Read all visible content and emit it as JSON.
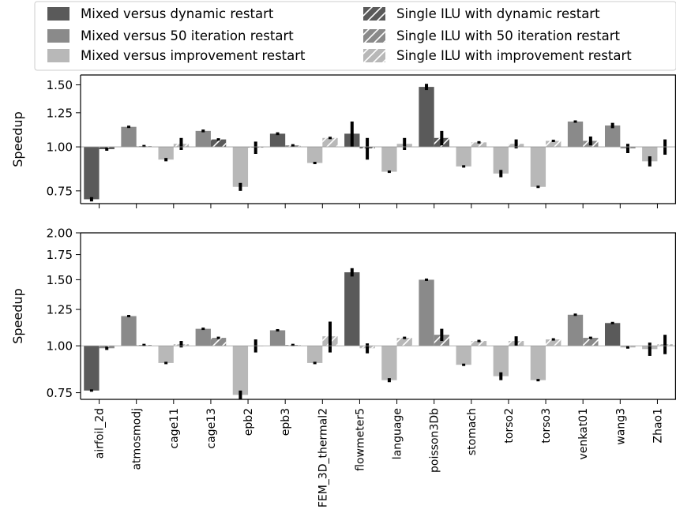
{
  "chart_data": {
    "type": "bar",
    "categories": [
      "airfoil_2d",
      "atmosmodj",
      "cage11",
      "cage13",
      "epb2",
      "epb3",
      "FEM_3D_thermal2",
      "flowmeter5",
      "language",
      "poisson3Db",
      "stomach",
      "torso2",
      "torso3",
      "venkat01",
      "wang3",
      "Zhao1"
    ],
    "baseline": 1.0,
    "legend": {
      "placement": "top",
      "entries": [
        {
          "label": "Mixed versus dynamic restart",
          "color": "#5a5a5a",
          "hatch": false
        },
        {
          "label": "Single ILU with dynamic restart",
          "color": "#5a5a5a",
          "hatch": true
        },
        {
          "label": "Mixed versus 50 iteration restart",
          "color": "#8a8a8a",
          "hatch": false
        },
        {
          "label": "Single ILU with 50 iteration restart",
          "color": "#8a8a8a",
          "hatch": true
        },
        {
          "label": "Mixed versus improvement restart",
          "color": "#b8b8b8",
          "hatch": false
        },
        {
          "label": "Single ILU with improvement restart",
          "color": "#b8b8b8",
          "hatch": true
        }
      ]
    },
    "panels": [
      {
        "ylabel": "Speedup",
        "yscale": "log",
        "ylim": [
          0.69,
          1.6
        ],
        "yticks": [
          "0.75",
          "1.00",
          "1.25",
          "1.50"
        ],
        "ytick_values": [
          0.75,
          1.0,
          1.25,
          1.5
        ],
        "show_xtick_labels": false,
        "mixed_restart_type": [
          "dynamic",
          "50",
          "improvement",
          "50",
          "improvement",
          "dynamic",
          "improvement",
          "dynamic",
          "improvement",
          "dynamic",
          "improvement",
          "improvement",
          "improvement",
          "50",
          "50",
          "improvement"
        ],
        "mixed": [
          0.71,
          1.14,
          0.92,
          1.11,
          0.77,
          1.09,
          0.9,
          1.09,
          0.85,
          1.48,
          0.88,
          0.84,
          0.77,
          1.18,
          1.15,
          0.91
        ],
        "mixed_err": [
          0.01,
          0.0,
          0.01,
          0.01,
          0.02,
          0.01,
          0.0,
          0.09,
          0.0,
          0.03,
          0.0,
          0.02,
          0.0,
          0.0,
          0.02,
          0.03
        ],
        "single_restart_type": [
          "dynamic",
          "50",
          "improvement",
          "dynamic",
          "50",
          "50",
          "improvement",
          "dynamic",
          "improvement",
          "dynamic",
          "improvement",
          "improvement",
          "improvement",
          "50",
          "50",
          "improvement"
        ],
        "single": [
          0.985,
          1.005,
          1.02,
          1.05,
          0.995,
          1.01,
          1.06,
          0.99,
          1.02,
          1.06,
          1.03,
          1.02,
          1.04,
          1.04,
          0.99,
          1.0
        ],
        "single_err": [
          0.01,
          0.0,
          0.04,
          0.0,
          0.04,
          0.0,
          0.0,
          0.07,
          0.04,
          0.05,
          0.0,
          0.03,
          0.0,
          0.03,
          0.03,
          0.05
        ]
      },
      {
        "ylabel": "Speedup",
        "yscale": "log",
        "ylim": [
          0.72,
          2.0
        ],
        "yticks": [
          "0.75",
          "1.00",
          "1.25",
          "1.50",
          "1.75",
          "2.00"
        ],
        "ytick_values": [
          0.75,
          1.0,
          1.25,
          1.5,
          1.75,
          2.0
        ],
        "show_xtick_labels": true,
        "mixed_restart_type": [
          "dynamic",
          "50",
          "improvement",
          "50",
          "improvement",
          "50",
          "improvement",
          "dynamic",
          "improvement",
          "50",
          "improvement",
          "improvement",
          "improvement",
          "50",
          "dynamic",
          "improvement"
        ],
        "mixed": [
          0.76,
          1.2,
          0.9,
          1.11,
          0.74,
          1.1,
          0.9,
          1.57,
          0.81,
          1.5,
          0.89,
          0.83,
          0.81,
          1.21,
          1.15,
          0.98
        ],
        "mixed_err": [
          0.0,
          0.0,
          0.0,
          0.0,
          0.02,
          0.0,
          0.0,
          0.04,
          0.01,
          0.01,
          0.0,
          0.02,
          0.0,
          0.0,
          0.0,
          0.04
        ],
        "single_restart_type": [
          "50",
          "50",
          "improvement",
          "50",
          "improvement",
          "50",
          "improvement",
          "improvement",
          "improvement",
          "50",
          "improvement",
          "improvement",
          "improvement",
          "50",
          "improvement",
          "improvement"
        ],
        "single": [
          0.985,
          1.005,
          1.01,
          1.05,
          1.0,
          1.005,
          1.06,
          0.985,
          1.05,
          1.07,
          1.03,
          1.03,
          1.04,
          1.05,
          0.99,
          1.01
        ],
        "single_err": [
          0.01,
          0.0,
          0.02,
          0.0,
          0.04,
          0.0,
          0.1,
          0.03,
          0.0,
          0.04,
          0.0,
          0.03,
          0.0,
          0.0,
          0.0,
          0.06
        ]
      }
    ]
  }
}
